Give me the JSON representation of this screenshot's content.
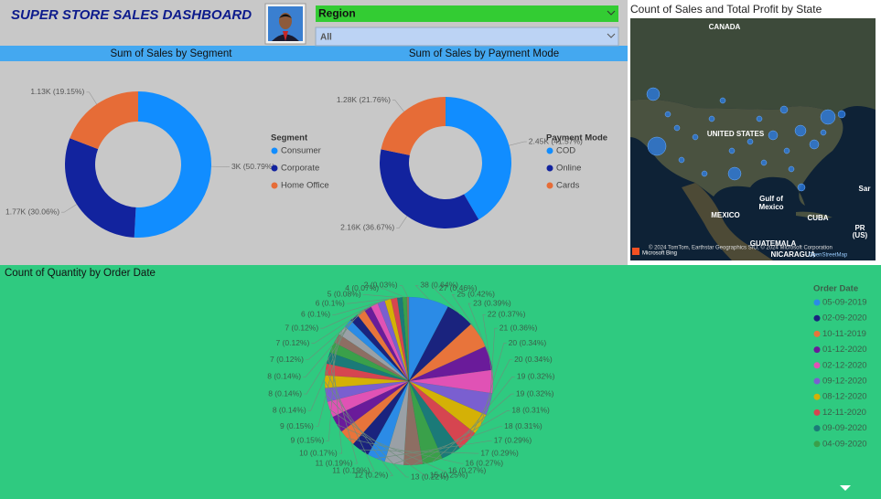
{
  "header": {
    "title": "SUPER STORE SALES DASHBOARD"
  },
  "slicer": {
    "label": "Region",
    "selection": "All"
  },
  "map": {
    "title": "Count of Sales and Total Profit by State",
    "places": [
      "CANADA",
      "UNITED STATES",
      "Gulf of",
      "Mexico",
      "MEXICO",
      "CUBA",
      "GUATEMALA",
      "NICARAGUA",
      "PR",
      "(US)",
      "Sar"
    ],
    "attribution": "© 2024 TomTom, Earthstar Geographics SIO, © 2024 Microsoft Corporation",
    "osm": "OpenStreetMap",
    "brand": "Microsoft Bing"
  },
  "chart_data": [
    {
      "type": "donut",
      "title": "Sum of Sales by Segment",
      "legend_title": "Segment",
      "categories": [
        "Consumer",
        "Corporate",
        "Home Office"
      ],
      "values": [
        3000,
        1770,
        1130
      ],
      "value_labels": [
        "3K (50.79%)",
        "1.77K (30.06%)",
        "1.13K (19.15%)"
      ],
      "colors": [
        "#118dff",
        "#12239e",
        "#e66c37"
      ]
    },
    {
      "type": "donut",
      "title": "Sum of Sales by Payment Mode",
      "legend_title": "Payment Mode",
      "categories": [
        "COD",
        "Online",
        "Cards"
      ],
      "values": [
        2450,
        2160,
        1280
      ],
      "value_labels": [
        "2.45K (41.57%)",
        "2.16K (36.67%)",
        "1.28K (21.76%)"
      ],
      "colors": [
        "#118dff",
        "#12239e",
        "#e66c37"
      ]
    },
    {
      "type": "pie",
      "title": "Count of Quantity by Order Date",
      "values": [
        38,
        27,
        25,
        23,
        22,
        21,
        20,
        20,
        19,
        19,
        18,
        18,
        17,
        17,
        16,
        16,
        15,
        13,
        12,
        11,
        11,
        10,
        9,
        9,
        8,
        8,
        8,
        7,
        7,
        7,
        6,
        6,
        5,
        4,
        2
      ],
      "value_labels": [
        "38 (0.64%)",
        "27 (0.46%)",
        "25 (0.42%)",
        "23 (0.39%)",
        "22 (0.37%)",
        "21 (0.36%)",
        "20 (0.34%)",
        "20 (0.34%)",
        "19 (0.32%)",
        "19 (0.32%)",
        "18 (0.31%)",
        "18 (0.31%)",
        "17 (0.29%)",
        "17 (0.29%)",
        "16 (0.27%)",
        "16 (0.27%)",
        "15 (0.25%)",
        "13 (0.22%)",
        "12 (0.2%)",
        "11 (0.19%)",
        "11 (0.19%)",
        "10 (0.17%)",
        "9 (0.15%)",
        "9 (0.15%)",
        "8 (0.14%)",
        "8 (0.14%)",
        "8 (0.14%)",
        "7 (0.12%)",
        "7 (0.12%)",
        "7 (0.12%)",
        "6 (0.1%)",
        "6 (0.1%)",
        "5 (0.08%)",
        "4 (0.07%)",
        "2 (0.03%)"
      ],
      "colors": [
        "#2b8be6",
        "#1a237e",
        "#e8743b",
        "#6a1b9a",
        "#e052b5",
        "#7a5fd0",
        "#d4b106",
        "#d64550",
        "#1b7a78",
        "#3aa04a",
        "#8d6e63",
        "#9aa0a6"
      ],
      "legend": {
        "title": "Order Date",
        "entries": [
          {
            "name": "05-09-2019",
            "color": "#2b8be6"
          },
          {
            "name": "02-09-2020",
            "color": "#1a237e"
          },
          {
            "name": "10-11-2019",
            "color": "#e8743b"
          },
          {
            "name": "01-12-2020",
            "color": "#6a1b9a"
          },
          {
            "name": "02-12-2020",
            "color": "#e052b5"
          },
          {
            "name": "09-12-2020",
            "color": "#7a5fd0"
          },
          {
            "name": "08-12-2020",
            "color": "#d4b106"
          },
          {
            "name": "12-11-2020",
            "color": "#d64550"
          },
          {
            "name": "09-09-2020",
            "color": "#1b7a78"
          },
          {
            "name": "04-09-2020",
            "color": "#3aa04a"
          }
        ]
      }
    }
  ]
}
